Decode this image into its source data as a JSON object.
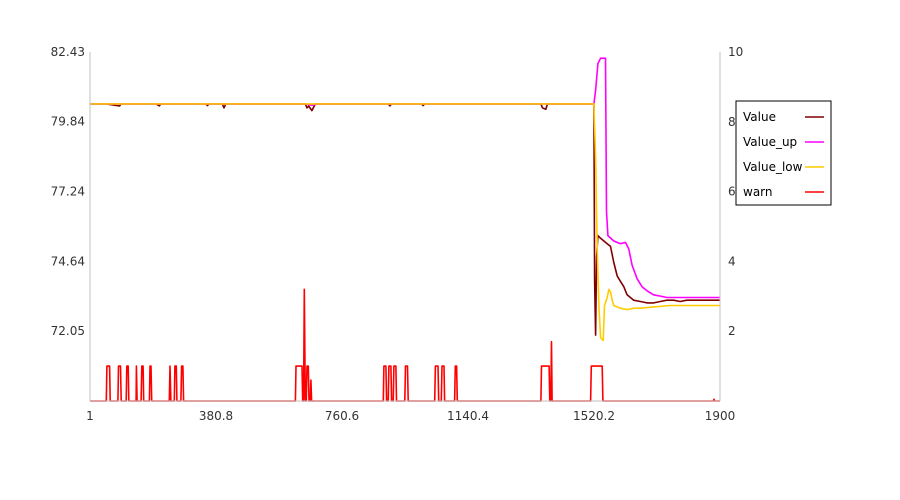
{
  "chart_data": {
    "type": "line",
    "title": "",
    "xlabel": "",
    "ylabel_left": "",
    "ylabel_right": "",
    "xlim": [
      1,
      1900
    ],
    "ylim_left": [
      69.45,
      82.43
    ],
    "ylim_right": [
      0,
      10
    ],
    "x_ticks": [
      "1",
      "380.8",
      "760.6",
      "1140.4",
      "1520.2",
      "1900"
    ],
    "y_left_ticks": [
      "72.05",
      "74.64",
      "77.24",
      "79.84",
      "82.43"
    ],
    "y_right_ticks": [
      "2",
      "4",
      "6",
      "8",
      "10"
    ],
    "grid": false,
    "legend_position": "right",
    "series": [
      {
        "name": "Value",
        "axis": "left",
        "color": "#800000",
        "points": [
          [
            1,
            80.5
          ],
          [
            50,
            80.5
          ],
          [
            90,
            80.42
          ],
          [
            95,
            80.5
          ],
          [
            200,
            80.5
          ],
          [
            210,
            80.43
          ],
          [
            215,
            80.5
          ],
          [
            350,
            80.5
          ],
          [
            355,
            80.44
          ],
          [
            360,
            80.5
          ],
          [
            400,
            80.5
          ],
          [
            405,
            80.35
          ],
          [
            410,
            80.5
          ],
          [
            650,
            80.5
          ],
          [
            655,
            80.35
          ],
          [
            660,
            80.42
          ],
          [
            670,
            80.25
          ],
          [
            680,
            80.5
          ],
          [
            900,
            80.5
          ],
          [
            905,
            80.43
          ],
          [
            910,
            80.5
          ],
          [
            1000,
            80.5
          ],
          [
            1005,
            80.44
          ],
          [
            1010,
            80.5
          ],
          [
            1360,
            80.5
          ],
          [
            1365,
            80.35
          ],
          [
            1375,
            80.3
          ],
          [
            1380,
            80.5
          ],
          [
            1520,
            80.5
          ],
          [
            1522,
            74.0
          ],
          [
            1525,
            71.9
          ],
          [
            1528,
            74.8
          ],
          [
            1532,
            75.6
          ],
          [
            1540,
            75.5
          ],
          [
            1550,
            75.4
          ],
          [
            1560,
            75.3
          ],
          [
            1570,
            75.2
          ],
          [
            1580,
            74.6
          ],
          [
            1590,
            74.1
          ],
          [
            1600,
            73.9
          ],
          [
            1610,
            73.7
          ],
          [
            1620,
            73.4
          ],
          [
            1640,
            73.2
          ],
          [
            1660,
            73.15
          ],
          [
            1680,
            73.1
          ],
          [
            1700,
            73.1
          ],
          [
            1720,
            73.15
          ],
          [
            1740,
            73.2
          ],
          [
            1760,
            73.2
          ],
          [
            1780,
            73.15
          ],
          [
            1800,
            73.2
          ],
          [
            1820,
            73.2
          ],
          [
            1850,
            73.2
          ],
          [
            1875,
            73.2
          ],
          [
            1900,
            73.2
          ]
        ]
      },
      {
        "name": "Value_up",
        "axis": "left",
        "color": "#ff00ff",
        "points": [
          [
            1,
            80.5
          ],
          [
            650,
            80.5
          ],
          [
            670,
            80.45
          ],
          [
            690,
            80.5
          ],
          [
            1520,
            80.5
          ],
          [
            1525,
            81.0
          ],
          [
            1532,
            82.0
          ],
          [
            1540,
            82.2
          ],
          [
            1555,
            82.2
          ],
          [
            1558,
            76.5
          ],
          [
            1562,
            75.6
          ],
          [
            1580,
            75.4
          ],
          [
            1600,
            75.3
          ],
          [
            1615,
            75.35
          ],
          [
            1625,
            75.1
          ],
          [
            1635,
            74.5
          ],
          [
            1650,
            74.0
          ],
          [
            1665,
            73.7
          ],
          [
            1680,
            73.55
          ],
          [
            1700,
            73.4
          ],
          [
            1720,
            73.35
          ],
          [
            1740,
            73.3
          ],
          [
            1760,
            73.3
          ],
          [
            1800,
            73.3
          ],
          [
            1850,
            73.3
          ],
          [
            1900,
            73.3
          ]
        ]
      },
      {
        "name": "Value_low",
        "axis": "left",
        "color": "#ffcc00",
        "points": [
          [
            1,
            80.5
          ],
          [
            1520,
            80.5
          ],
          [
            1525,
            78.5
          ],
          [
            1530,
            75.0
          ],
          [
            1535,
            73.0
          ],
          [
            1540,
            71.8
          ],
          [
            1548,
            71.7
          ],
          [
            1552,
            73.0
          ],
          [
            1560,
            73.3
          ],
          [
            1565,
            73.6
          ],
          [
            1570,
            73.5
          ],
          [
            1575,
            73.2
          ],
          [
            1580,
            73.0
          ],
          [
            1600,
            72.9
          ],
          [
            1620,
            72.85
          ],
          [
            1640,
            72.9
          ],
          [
            1660,
            72.9
          ],
          [
            1700,
            72.95
          ],
          [
            1750,
            73.0
          ],
          [
            1800,
            73.0
          ],
          [
            1850,
            73.0
          ],
          [
            1900,
            73.0
          ]
        ]
      },
      {
        "name": "warn",
        "axis": "right",
        "color": "#ff0000",
        "points": [
          [
            1,
            0
          ],
          [
            50,
            0
          ],
          [
            52,
            1
          ],
          [
            60,
            1
          ],
          [
            62,
            0
          ],
          [
            85,
            0
          ],
          [
            87,
            1
          ],
          [
            93,
            1
          ],
          [
            95,
            0
          ],
          [
            110,
            0
          ],
          [
            112,
            1
          ],
          [
            116,
            1
          ],
          [
            118,
            0
          ],
          [
            140,
            0
          ],
          [
            141,
            1
          ],
          [
            143,
            0
          ],
          [
            155,
            0
          ],
          [
            157,
            1
          ],
          [
            161,
            1
          ],
          [
            163,
            0
          ],
          [
            180,
            0
          ],
          [
            182,
            1
          ],
          [
            185,
            1
          ],
          [
            187,
            0
          ],
          [
            240,
            0
          ],
          [
            242,
            1
          ],
          [
            245,
            0
          ],
          [
            255,
            0
          ],
          [
            257,
            1
          ],
          [
            261,
            1
          ],
          [
            263,
            0
          ],
          [
            275,
            0
          ],
          [
            277,
            1
          ],
          [
            281,
            1
          ],
          [
            283,
            0
          ],
          [
            620,
            0
          ],
          [
            622,
            1
          ],
          [
            640,
            1
          ],
          [
            642,
            0
          ],
          [
            645,
            0
          ],
          [
            647,
            3.2
          ],
          [
            650,
            0
          ],
          [
            653,
            0
          ],
          [
            655,
            1
          ],
          [
            659,
            1
          ],
          [
            661,
            0
          ],
          [
            665,
            0
          ],
          [
            667,
            0.6
          ],
          [
            669,
            0
          ],
          [
            885,
            0
          ],
          [
            887,
            1
          ],
          [
            893,
            1
          ],
          [
            895,
            0
          ],
          [
            900,
            0
          ],
          [
            902,
            1
          ],
          [
            908,
            1
          ],
          [
            910,
            0
          ],
          [
            915,
            0
          ],
          [
            917,
            1
          ],
          [
            923,
            1
          ],
          [
            925,
            0
          ],
          [
            950,
            0
          ],
          [
            952,
            1
          ],
          [
            958,
            1
          ],
          [
            960,
            0
          ],
          [
            1040,
            0
          ],
          [
            1042,
            1
          ],
          [
            1050,
            1
          ],
          [
            1052,
            0
          ],
          [
            1060,
            0
          ],
          [
            1062,
            1
          ],
          [
            1068,
            1
          ],
          [
            1070,
            0
          ],
          [
            1100,
            0
          ],
          [
            1102,
            1
          ],
          [
            1106,
            1
          ],
          [
            1108,
            0
          ],
          [
            1360,
            0
          ],
          [
            1362,
            1
          ],
          [
            1385,
            1
          ],
          [
            1387,
            0
          ],
          [
            1390,
            0
          ],
          [
            1392,
            1.7
          ],
          [
            1394,
            0
          ],
          [
            1510,
            0
          ],
          [
            1512,
            1
          ],
          [
            1545,
            1
          ],
          [
            1547,
            0
          ],
          [
            1880,
            0
          ],
          [
            1882,
            0.05
          ],
          [
            1884,
            0
          ],
          [
            1900,
            0
          ]
        ]
      }
    ]
  }
}
